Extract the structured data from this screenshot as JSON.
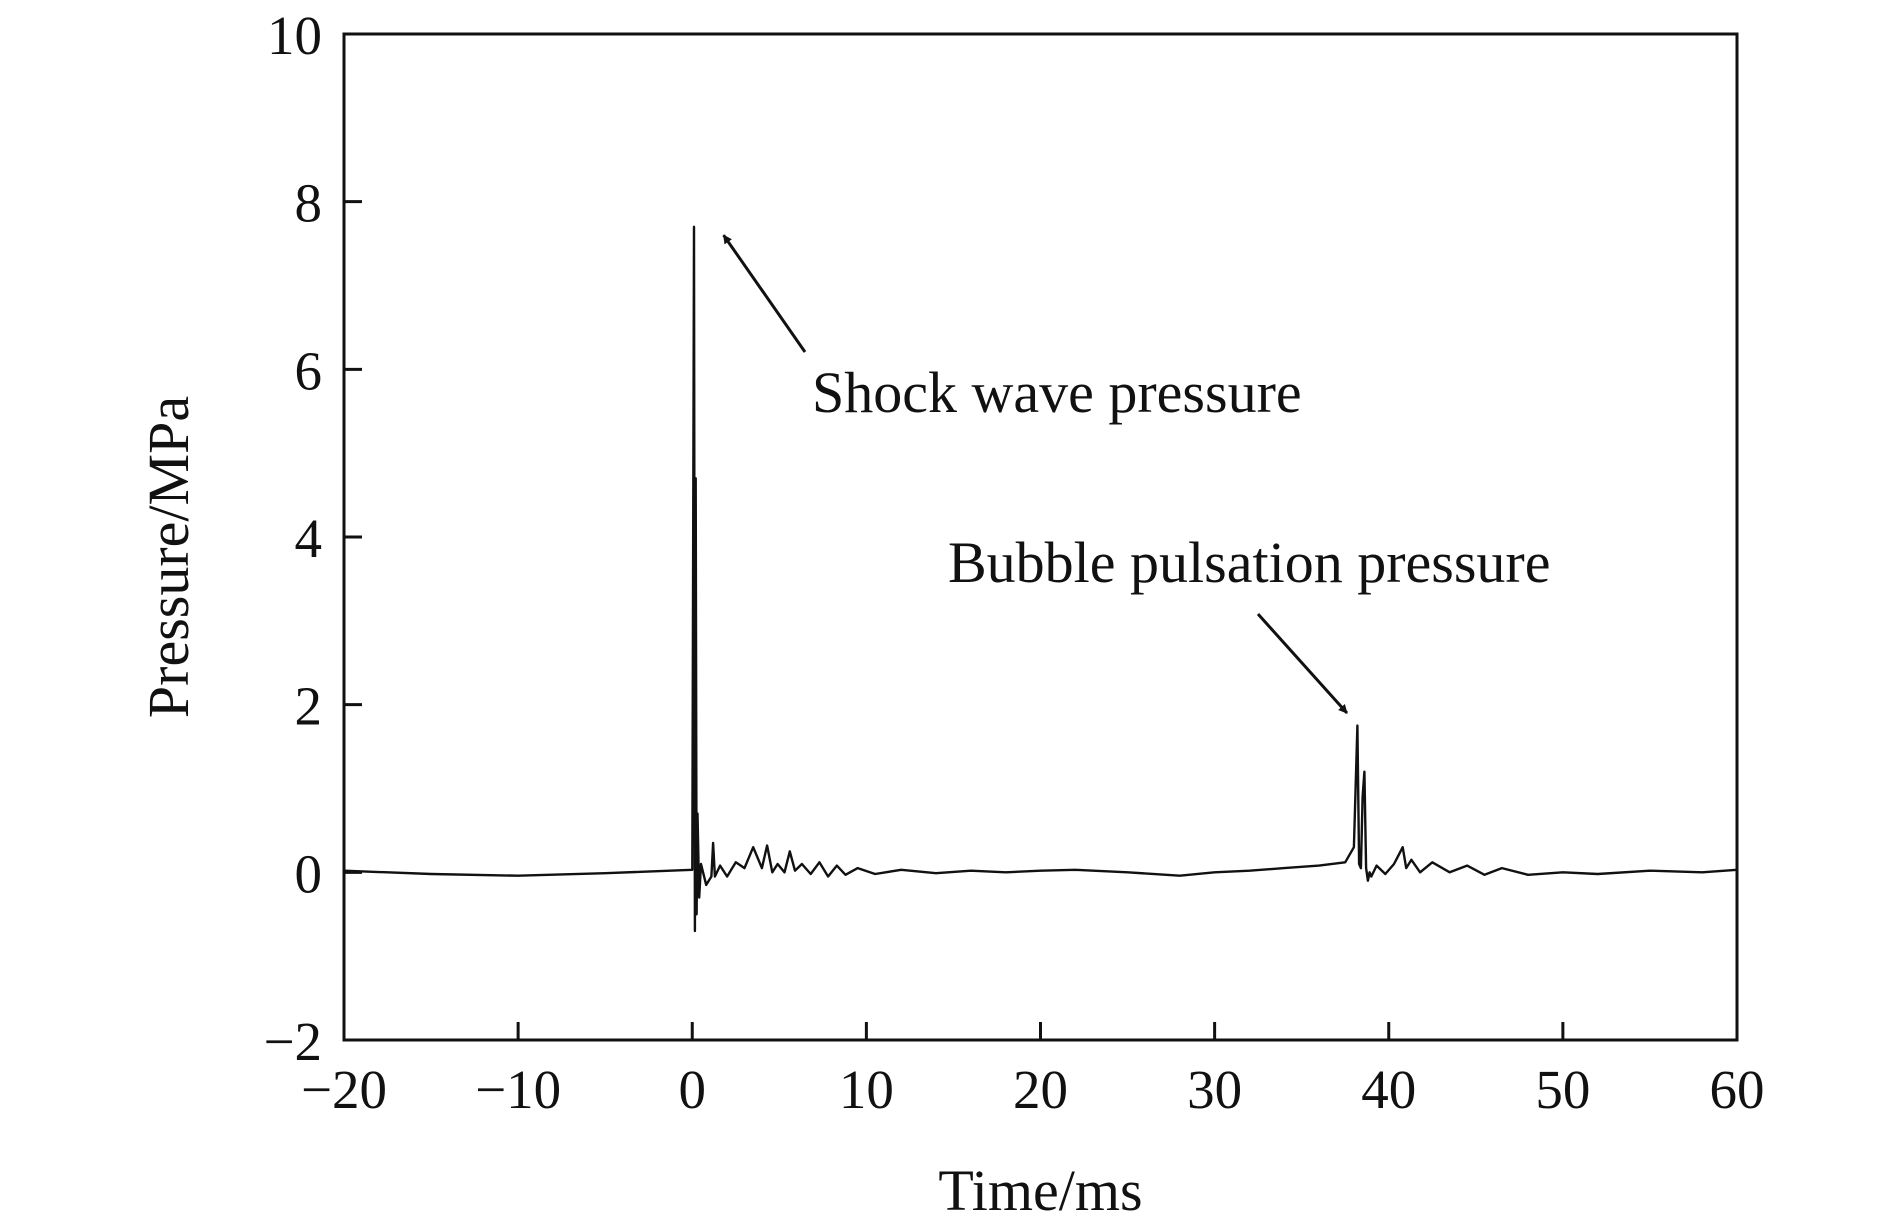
{
  "chart_data": {
    "type": "line",
    "title": "",
    "xlabel": "Time/ms",
    "ylabel": "Pressure/MPa",
    "xlim": [
      -20,
      60
    ],
    "ylim": [
      -2,
      10
    ],
    "xticks": [
      -20,
      -10,
      0,
      10,
      20,
      30,
      40,
      50,
      60
    ],
    "yticks": [
      -2,
      0,
      2,
      4,
      6,
      8,
      10
    ],
    "xtick_labels": [
      "−20",
      "−10",
      "0",
      "10",
      "20",
      "30",
      "40",
      "50",
      "60"
    ],
    "ytick_labels": [
      "−2",
      "0",
      "2",
      "4",
      "6",
      "8",
      "10"
    ],
    "grid": false,
    "legend": "none",
    "line_color": "#111111",
    "annotations": [
      {
        "text": "Shock wave pressure",
        "points_to": [
          1.8,
          7.6
        ]
      },
      {
        "text": "Bubble pulsation pressure",
        "points_to": [
          37.6,
          1.9
        ]
      }
    ],
    "series": [
      {
        "x": [
          -20,
          -15,
          -10,
          -5,
          0,
          0.1,
          0.15,
          0.2,
          0.25,
          0.3,
          0.4,
          0.5,
          0.8,
          1.1,
          1.2,
          1.3,
          1.6,
          2.0,
          2.5,
          3.0,
          3.5,
          4.0,
          4.3,
          4.6,
          4.9,
          5.3,
          5.6,
          5.9,
          6.3,
          6.8,
          7.3,
          7.8,
          8.3,
          8.8,
          9.5,
          10.5,
          12,
          14,
          16,
          18,
          20,
          22,
          25,
          28,
          30,
          32,
          34,
          36,
          37.5,
          38.0,
          38.2,
          38.3,
          38.4,
          38.5,
          38.6,
          38.7,
          38.8,
          38.9,
          39.0,
          39.3,
          39.8,
          40.3,
          40.8,
          41.0,
          41.3,
          41.8,
          42.5,
          43.5,
          44.5,
          45.5,
          46.5,
          48,
          50,
          52,
          55,
          58,
          60
        ],
        "y": [
          0.02,
          -0.02,
          -0.04,
          -0.01,
          0.03,
          7.7,
          -0.7,
          4.7,
          -0.5,
          0.7,
          -0.3,
          0.1,
          -0.15,
          -0.05,
          0.35,
          -0.05,
          0.08,
          -0.05,
          0.12,
          0.05,
          0.3,
          0.05,
          0.32,
          0.0,
          0.1,
          0.0,
          0.25,
          0.02,
          0.1,
          -0.02,
          0.12,
          -0.05,
          0.08,
          -0.03,
          0.05,
          -0.02,
          0.03,
          -0.01,
          0.02,
          0.0,
          0.02,
          0.03,
          0.0,
          -0.04,
          0.0,
          0.02,
          0.05,
          0.08,
          0.12,
          0.3,
          1.75,
          0.1,
          0.05,
          0.9,
          1.2,
          0.05,
          -0.1,
          0.0,
          -0.05,
          0.08,
          -0.02,
          0.1,
          0.3,
          0.05,
          0.15,
          0.0,
          0.12,
          0.0,
          0.08,
          -0.03,
          0.05,
          -0.03,
          0.0,
          -0.02,
          0.02,
          0.0,
          0.03
        ]
      }
    ]
  }
}
